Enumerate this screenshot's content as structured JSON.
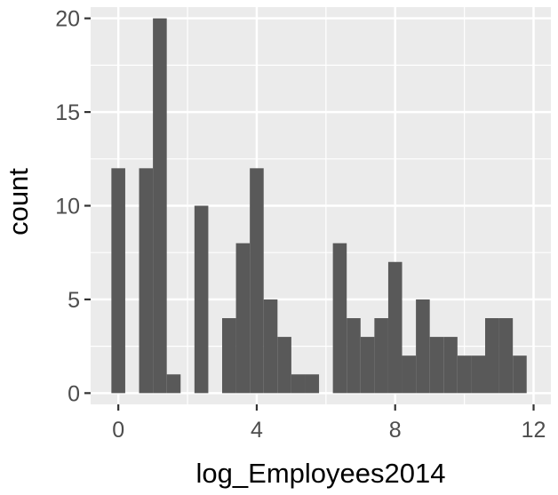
{
  "chart_data": {
    "type": "bar",
    "subtype": "histogram",
    "xlabel": "log_Employees2014",
    "ylabel": "count",
    "xlim": [
      -0.8,
      12.5
    ],
    "ylim": [
      -0.6,
      20.6
    ],
    "x_ticks": [
      0,
      4,
      8,
      12
    ],
    "y_ticks": [
      0,
      5,
      10,
      15,
      20
    ],
    "x_minor_ticks": [
      2,
      6,
      10
    ],
    "y_minor_ticks": [
      2.5,
      7.5,
      12.5,
      17.5
    ],
    "bin_width": 0.4,
    "bins": [
      {
        "x0": -0.2,
        "x1": 0.2,
        "count": 12
      },
      {
        "x0": 0.2,
        "x1": 0.6,
        "count": 0
      },
      {
        "x0": 0.6,
        "x1": 1.0,
        "count": 12
      },
      {
        "x0": 1.0,
        "x1": 1.4,
        "count": 20
      },
      {
        "x0": 1.4,
        "x1": 1.8,
        "count": 1
      },
      {
        "x0": 1.8,
        "x1": 2.2,
        "count": 0
      },
      {
        "x0": 2.2,
        "x1": 2.6,
        "count": 10
      },
      {
        "x0": 2.6,
        "x1": 3.0,
        "count": 0
      },
      {
        "x0": 3.0,
        "x1": 3.4,
        "count": 4
      },
      {
        "x0": 3.4,
        "x1": 3.8,
        "count": 8
      },
      {
        "x0": 3.8,
        "x1": 4.2,
        "count": 12
      },
      {
        "x0": 4.2,
        "x1": 4.6,
        "count": 5
      },
      {
        "x0": 4.6,
        "x1": 5.0,
        "count": 3
      },
      {
        "x0": 5.0,
        "x1": 5.4,
        "count": 1
      },
      {
        "x0": 5.4,
        "x1": 5.8,
        "count": 1
      },
      {
        "x0": 5.8,
        "x1": 6.2,
        "count": 0
      },
      {
        "x0": 6.2,
        "x1": 6.6,
        "count": 8
      },
      {
        "x0": 6.6,
        "x1": 7.0,
        "count": 4
      },
      {
        "x0": 7.0,
        "x1": 7.4,
        "count": 3
      },
      {
        "x0": 7.4,
        "x1": 7.8,
        "count": 4
      },
      {
        "x0": 7.8,
        "x1": 8.2,
        "count": 7
      },
      {
        "x0": 8.2,
        "x1": 8.6,
        "count": 2
      },
      {
        "x0": 8.6,
        "x1": 9.0,
        "count": 5
      },
      {
        "x0": 9.0,
        "x1": 9.4,
        "count": 3
      },
      {
        "x0": 9.4,
        "x1": 9.8,
        "count": 3
      },
      {
        "x0": 9.8,
        "x1": 10.2,
        "count": 2
      },
      {
        "x0": 10.2,
        "x1": 10.6,
        "count": 2
      },
      {
        "x0": 10.6,
        "x1": 11.0,
        "count": 4
      },
      {
        "x0": 11.0,
        "x1": 11.4,
        "count": 4
      },
      {
        "x0": 11.4,
        "x1": 11.8,
        "count": 2
      }
    ],
    "grid": true,
    "legend": "none",
    "colors": {
      "panel_background": "#ebebeb",
      "grid_line": "#ffffff",
      "bar_fill": "#595959",
      "tick_mark": "#333333",
      "tick_label": "#4d4d4d",
      "axis_title": "#000000"
    }
  }
}
